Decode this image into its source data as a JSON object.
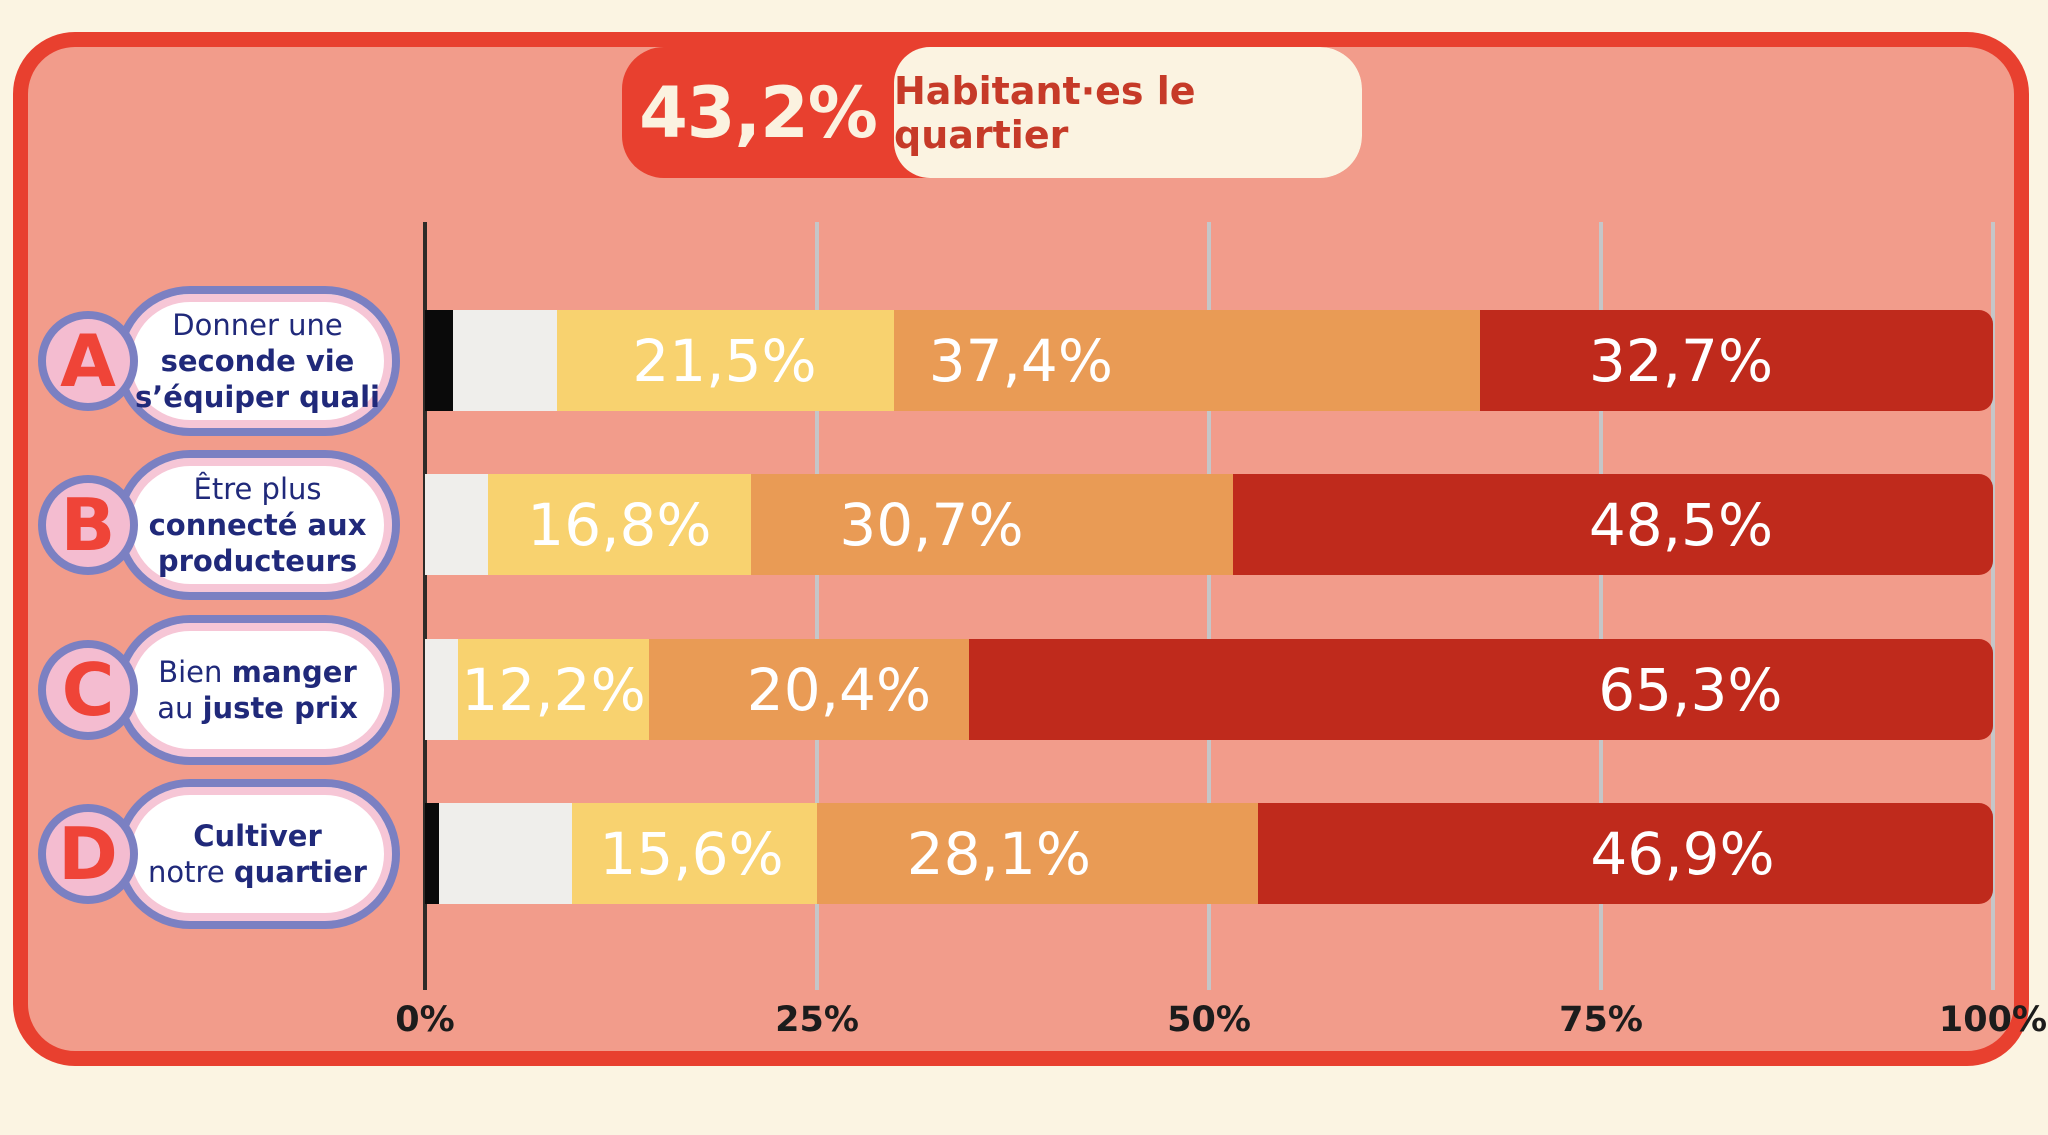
{
  "title_badge": {
    "value": "43,2%",
    "label": "Habitant·es le quartier"
  },
  "colors": {
    "page_bg": "#FBF4E2",
    "card_bg": "#F29C8B",
    "card_border": "#E8402F",
    "badge_red": "#E8402F",
    "badge_cream": "#FBF3E1",
    "badge_value_text": "#FBF2E0",
    "badge_label_text": "#C63A28",
    "navy": "#20297A",
    "pill_white": "#FFFFFF",
    "ring_purple": "#7B80C2",
    "ring_pink": "#F6C6D6",
    "circle_pink": "#F4BCD0",
    "letter_red": "#EF4438",
    "bar_black": "#0A0A0A",
    "bar_white": "#EFEEEB",
    "bar_yellow": "#F8D26F",
    "bar_orange": "#E99B55",
    "bar_red": "#BF2A1C",
    "grid_gray": "#C5C6C8",
    "axis_dark": "#2E2B28",
    "tick_text": "#1C1C1C"
  },
  "chart_data": {
    "type": "bar",
    "orientation": "horizontal_stacked",
    "unit": "percent",
    "xlim": [
      0,
      100
    ],
    "grid": true,
    "x_ticks": [
      {
        "label": "0%",
        "value": 0
      },
      {
        "label": "25%",
        "value": 25
      },
      {
        "label": "50%",
        "value": 50
      },
      {
        "label": "75%",
        "value": 75
      },
      {
        "label": "100%",
        "value": 100
      }
    ],
    "rows": [
      {
        "letter": "A",
        "label_lines": [
          [
            {
              "t": "Donner une",
              "b": false
            }
          ],
          [
            {
              "t": "seconde vie",
              "b": true
            }
          ],
          [
            {
              "t": "s’équiper quali",
              "b": true
            }
          ]
        ],
        "segments": [
          {
            "key": "black",
            "value": 1.8,
            "label": ""
          },
          {
            "key": "white",
            "value": 6.6,
            "label": ""
          },
          {
            "key": "yellow",
            "value": 21.5,
            "label": "21,5%",
            "label_x": 19.1
          },
          {
            "key": "orange",
            "value": 37.4,
            "label": "37,4%",
            "label_x": 38.0
          },
          {
            "key": "red",
            "value": 32.7,
            "label": "32,7%",
            "label_x": 80.1
          }
        ]
      },
      {
        "letter": "B",
        "label_lines": [
          [
            {
              "t": "Être plus",
              "b": false
            }
          ],
          [
            {
              "t": "connecté aux",
              "b": true
            }
          ],
          [
            {
              "t": "producteurs",
              "b": true
            }
          ]
        ],
        "segments": [
          {
            "key": "white",
            "value": 4.0,
            "label": ""
          },
          {
            "key": "yellow",
            "value": 16.8,
            "label": "16,8%",
            "label_x": 12.4
          },
          {
            "key": "orange",
            "value": 30.7,
            "label": "30,7%",
            "label_x": 32.3
          },
          {
            "key": "red",
            "value": 48.5,
            "label": "48,5%",
            "label_x": 80.1
          }
        ]
      },
      {
        "letter": "C",
        "label_lines": [
          [
            {
              "t": "Bien ",
              "b": false
            },
            {
              "t": "manger",
              "b": true
            }
          ],
          [
            {
              "t": "au ",
              "b": false
            },
            {
              "t": "juste prix",
              "b": true
            }
          ]
        ],
        "segments": [
          {
            "key": "white",
            "value": 2.1,
            "label": ""
          },
          {
            "key": "yellow",
            "value": 12.2,
            "label": "12,2%",
            "label_x": 8.2
          },
          {
            "key": "orange",
            "value": 20.4,
            "label": "20,4%",
            "label_x": 26.4
          },
          {
            "key": "red",
            "value": 65.3,
            "label": "65,3%",
            "label_x": 80.7
          }
        ]
      },
      {
        "letter": "D",
        "label_lines": [
          [
            {
              "t": "Cultiver",
              "b": true
            }
          ],
          [
            {
              "t": "notre ",
              "b": false
            },
            {
              "t": "quartier",
              "b": true
            }
          ]
        ],
        "segments": [
          {
            "key": "black",
            "value": 0.9,
            "label": ""
          },
          {
            "key": "white",
            "value": 8.5,
            "label": ""
          },
          {
            "key": "yellow",
            "value": 15.6,
            "label": "15,6%",
            "label_x": 17.0
          },
          {
            "key": "orange",
            "value": 28.1,
            "label": "28,1%",
            "label_x": 36.6
          },
          {
            "key": "red",
            "value": 46.9,
            "label": "46,9%",
            "label_x": 80.2
          }
        ]
      }
    ]
  }
}
